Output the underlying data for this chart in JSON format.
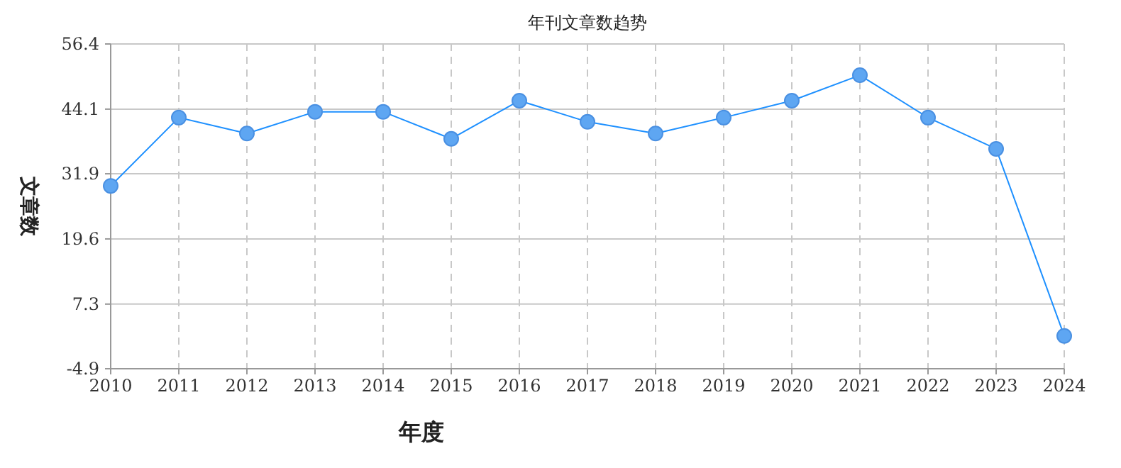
{
  "chart_data": {
    "type": "line",
    "title": "年刊文章数趋势",
    "xlabel": "年度",
    "ylabel": "文章数",
    "categories": [
      "2010",
      "2011",
      "2012",
      "2013",
      "2014",
      "2015",
      "2016",
      "2017",
      "2018",
      "2019",
      "2020",
      "2021",
      "2022",
      "2023",
      "2024"
    ],
    "series": [
      {
        "color": "#1e90ff",
        "values": [
          29.6,
          42.5,
          39.5,
          43.6,
          43.6,
          38.5,
          45.7,
          41.7,
          39.5,
          42.5,
          45.7,
          50.5,
          42.5,
          36.6,
          1.3
        ]
      }
    ],
    "ylim": [
      -4.9,
      56.4
    ],
    "yticks": [
      -4.9,
      7.3,
      19.6,
      31.9,
      44.1,
      56.4
    ],
    "grid": true,
    "marker": "circle",
    "line_style": "solid"
  }
}
